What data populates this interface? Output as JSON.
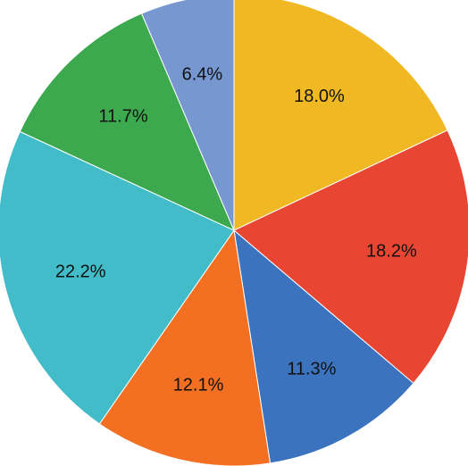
{
  "chart_data": {
    "type": "pie",
    "title": "",
    "start_angle_deg": 0,
    "direction": "clockwise",
    "slices": [
      {
        "value": 18.0,
        "label": "18.0%",
        "color": "#F0B823"
      },
      {
        "value": 18.2,
        "label": "18.2%",
        "color": "#E84532"
      },
      {
        "value": 11.3,
        "label": "11.3%",
        "color": "#3C73BE"
      },
      {
        "value": 12.1,
        "label": "12.1%",
        "color": "#F37023"
      },
      {
        "value": 22.2,
        "label": "22.2%",
        "color": "#42BCC8"
      },
      {
        "value": 11.7,
        "label": "11.7%",
        "color": "#3DA94E"
      },
      {
        "value": 6.4,
        "label": "6.4%",
        "color": "#7797D1"
      }
    ]
  }
}
